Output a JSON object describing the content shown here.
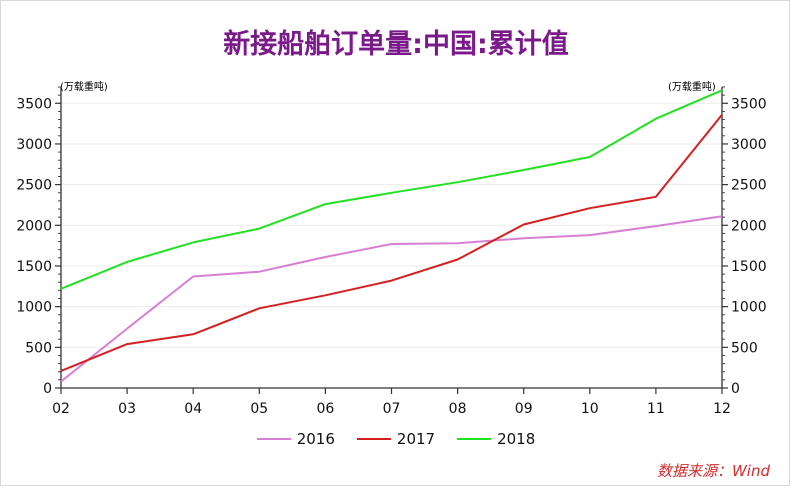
{
  "chart_data": {
    "type": "line",
    "title": "新接船舶订单量:中国:累计值",
    "unit_left": "(万载重吨)",
    "unit_right": "(万载重吨)",
    "categories": [
      "02",
      "03",
      "04",
      "05",
      "06",
      "07",
      "08",
      "09",
      "10",
      "11",
      "12"
    ],
    "ylim": [
      0,
      3700
    ],
    "yticks": [
      0,
      500,
      1000,
      1500,
      2000,
      2500,
      3000,
      3500
    ],
    "grid": true,
    "legend_position": "bottom",
    "series": [
      {
        "name": "2016",
        "color": "#d67fd3",
        "values": [
          80,
          730,
          1370,
          1430,
          1610,
          1770,
          1780,
          1840,
          1880,
          1990,
          2110
        ]
      },
      {
        "name": "2017",
        "color": "#d42020",
        "values": [
          210,
          540,
          660,
          980,
          1140,
          1320,
          1580,
          2010,
          2210,
          2350,
          3360
        ]
      },
      {
        "name": "2018",
        "color": "#22e022",
        "values": [
          1220,
          1550,
          1790,
          1960,
          2260,
          2400,
          2530,
          2680,
          2840,
          3310,
          3660
        ]
      }
    ]
  },
  "source": "数据来源：Wind"
}
